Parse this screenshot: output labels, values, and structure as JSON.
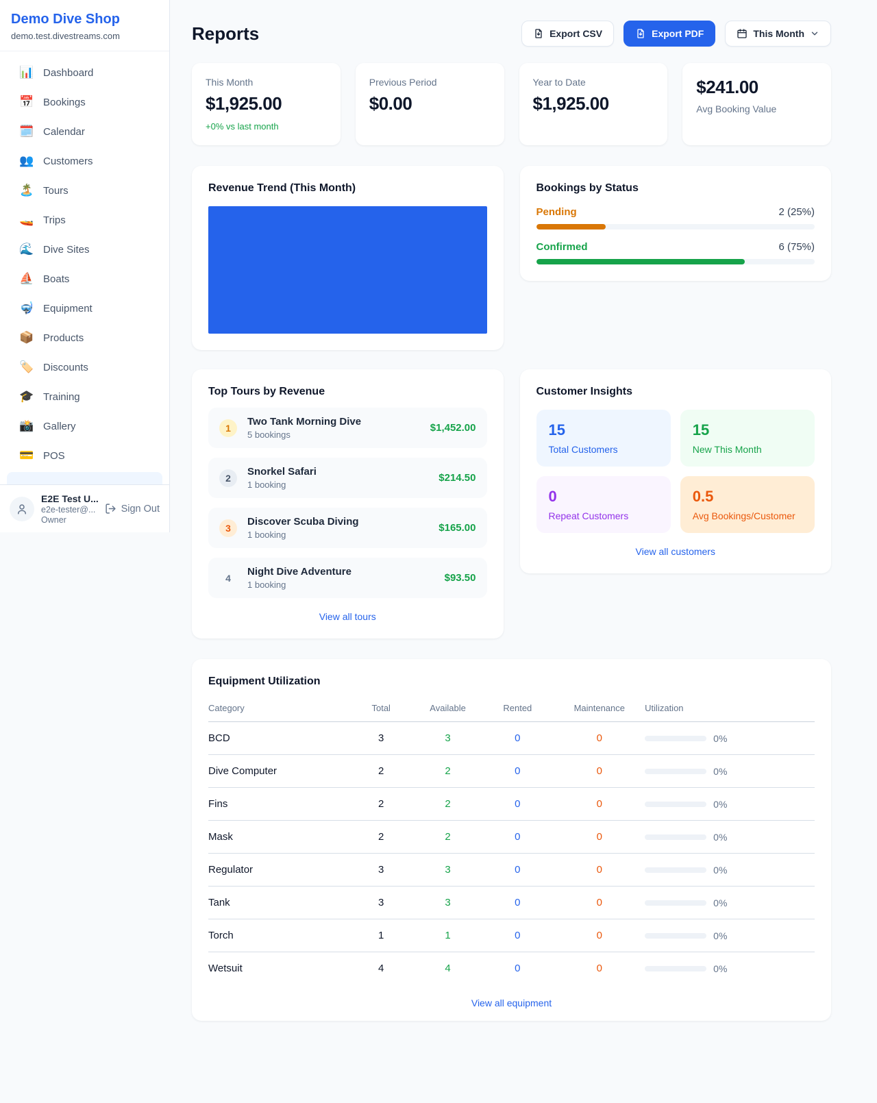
{
  "sidebar": {
    "shop_name": "Demo Dive Shop",
    "shop_domain": "demo.test.divestreams.com",
    "items": [
      {
        "glyph": "📊",
        "label": "Dashboard"
      },
      {
        "glyph": "📅",
        "label": "Bookings"
      },
      {
        "glyph": "🗓️",
        "label": "Calendar"
      },
      {
        "glyph": "👥",
        "label": "Customers"
      },
      {
        "glyph": "🏝️",
        "label": "Tours"
      },
      {
        "glyph": "🚤",
        "label": "Trips"
      },
      {
        "glyph": "🌊",
        "label": "Dive Sites"
      },
      {
        "glyph": "⛵",
        "label": "Boats"
      },
      {
        "glyph": "🤿",
        "label": "Equipment"
      },
      {
        "glyph": "📦",
        "label": "Products"
      },
      {
        "glyph": "🏷️",
        "label": "Discounts"
      },
      {
        "glyph": "🎓",
        "label": "Training"
      },
      {
        "glyph": "📸",
        "label": "Gallery"
      },
      {
        "glyph": "💳",
        "label": "POS"
      }
    ],
    "user": {
      "name": "E2E Test U...",
      "email": "e2e-tester@...",
      "role": "Owner",
      "signout_label": "Sign Out"
    }
  },
  "header": {
    "title": "Reports",
    "export_csv_label": "Export CSV",
    "export_pdf_label": "Export PDF",
    "period_label": "This Month"
  },
  "stats": [
    {
      "label": "This Month",
      "value": "$1,925.00",
      "delta": "+0% vs last month"
    },
    {
      "label": "Previous Period",
      "value": "$0.00"
    },
    {
      "label": "Year to Date",
      "value": "$1,925.00"
    },
    {
      "label": "Avg Booking Value",
      "value": "$241.00"
    }
  ],
  "revenue_trend": {
    "title": "Revenue Trend (This Month)",
    "fill_color": "#2563eb"
  },
  "bookings_by_status": {
    "title": "Bookings by Status",
    "rows": [
      {
        "label": "Pending",
        "value": "2 (25%)",
        "pct": 25,
        "color": "#d97706"
      },
      {
        "label": "Confirmed",
        "value": "6 (75%)",
        "pct": 75,
        "color": "#16a34a"
      }
    ]
  },
  "top_tours": {
    "title": "Top Tours by Revenue",
    "rows": [
      {
        "rank": "1",
        "name": "Two Tank Morning Dive",
        "bookings": "5 bookings",
        "revenue": "$1,452.00"
      },
      {
        "rank": "2",
        "name": "Snorkel Safari",
        "bookings": "1 booking",
        "revenue": "$214.50"
      },
      {
        "rank": "3",
        "name": "Discover Scuba Diving",
        "bookings": "1 booking",
        "revenue": "$165.00"
      },
      {
        "rank": "4",
        "name": "Night Dive Adventure",
        "bookings": "1 booking",
        "revenue": "$93.50"
      }
    ],
    "view_all_label": "View all tours"
  },
  "customer_insights": {
    "title": "Customer Insights",
    "tiles": [
      {
        "value": "15",
        "label": "Total Customers",
        "color": "#2563eb",
        "bg": "#eff6ff"
      },
      {
        "value": "15",
        "label": "New This Month",
        "color": "#16a34a",
        "bg": "#f0fdf4"
      },
      {
        "value": "0",
        "label": "Repeat Customers",
        "color": "#9333ea",
        "bg": "#faf5ff"
      },
      {
        "value": "0.5",
        "label": "Avg Bookings/Customer",
        "color": "#ea580c",
        "bg": "#ffedd5"
      }
    ],
    "view_all_label": "View all customers"
  },
  "equipment": {
    "title": "Equipment Utilization",
    "columns": [
      "Category",
      "Total",
      "Available",
      "Rented",
      "Maintenance",
      "Utilization"
    ],
    "rows": [
      {
        "category": "BCD",
        "total": "3",
        "available": "3",
        "rented": "0",
        "maintenance": "0",
        "utilization": "0%",
        "util_pct": 0
      },
      {
        "category": "Dive Computer",
        "total": "2",
        "available": "2",
        "rented": "0",
        "maintenance": "0",
        "utilization": "0%",
        "util_pct": 0
      },
      {
        "category": "Fins",
        "total": "2",
        "available": "2",
        "rented": "0",
        "maintenance": "0",
        "utilization": "0%",
        "util_pct": 0
      },
      {
        "category": "Mask",
        "total": "2",
        "available": "2",
        "rented": "0",
        "maintenance": "0",
        "utilization": "0%",
        "util_pct": 0
      },
      {
        "category": "Regulator",
        "total": "3",
        "available": "3",
        "rented": "0",
        "maintenance": "0",
        "utilization": "0%",
        "util_pct": 0
      },
      {
        "category": "Tank",
        "total": "3",
        "available": "3",
        "rented": "0",
        "maintenance": "0",
        "utilization": "0%",
        "util_pct": 0
      },
      {
        "category": "Torch",
        "total": "1",
        "available": "1",
        "rented": "0",
        "maintenance": "0",
        "utilization": "0%",
        "util_pct": 0
      },
      {
        "category": "Wetsuit",
        "total": "4",
        "available": "4",
        "rented": "0",
        "maintenance": "0",
        "utilization": "0%",
        "util_pct": 0
      }
    ],
    "view_all_label": "View all equipment"
  }
}
